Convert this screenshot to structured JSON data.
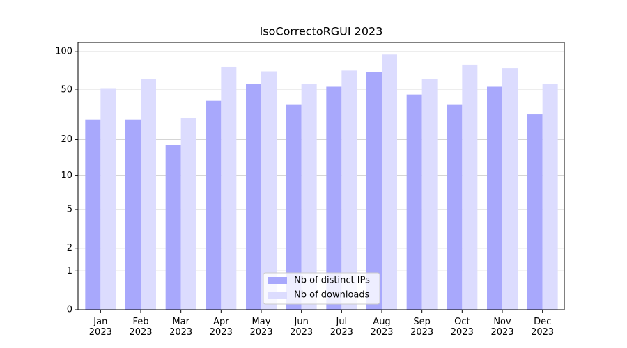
{
  "chart_data": {
    "type": "bar",
    "title": "IsoCorrectoRGUI 2023",
    "categories": [
      "Jan\n2023",
      "Feb\n2023",
      "Mar\n2023",
      "Apr\n2023",
      "May\n2023",
      "Jun\n2023",
      "Jul\n2023",
      "Aug\n2023",
      "Sep\n2023",
      "Oct\n2023",
      "Nov\n2023",
      "Dec\n2023"
    ],
    "series": [
      {
        "name": "Nb of distinct IPs",
        "color": "#a8a8fc",
        "values": [
          29,
          29,
          18,
          41,
          56,
          38,
          53,
          69,
          46,
          38,
          53,
          32
        ]
      },
      {
        "name": "Nb of downloads",
        "color": "#dcdcfe",
        "values": [
          51,
          61,
          30,
          76,
          70,
          56,
          71,
          95,
          61,
          79,
          74,
          56
        ]
      }
    ],
    "yscale": "log1p",
    "ylim": [
      0,
      118
    ],
    "yticks": [
      0,
      1,
      2,
      5,
      10,
      20,
      50,
      100
    ],
    "grid": true,
    "legend": "lower center"
  }
}
